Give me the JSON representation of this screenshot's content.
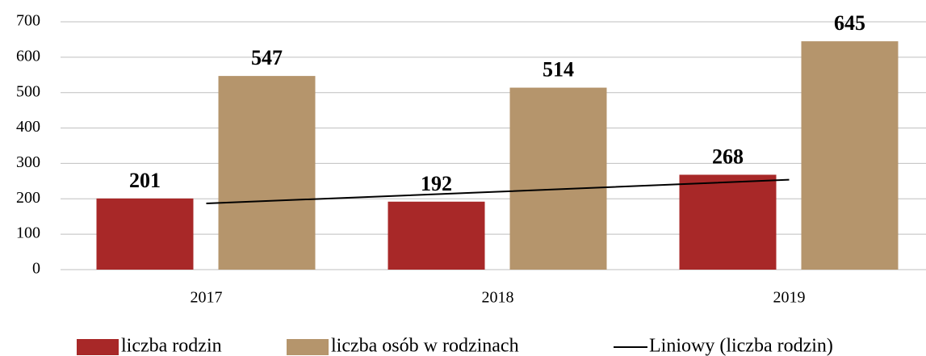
{
  "chart_data": {
    "type": "bar",
    "categories": [
      "2017",
      "2018",
      "2019"
    ],
    "series": [
      {
        "name": "liczba rodzin",
        "color": "#a82828",
        "values": [
          201,
          192,
          268
        ]
      },
      {
        "name": "liczba osób w rodzinach",
        "color": "#b5956c",
        "values": [
          547,
          514,
          645
        ]
      },
      {
        "name": "Liniowy (liczba rodzin)",
        "color": "#000000",
        "type": "line",
        "values": [
          187,
          220,
          254
        ]
      }
    ],
    "ylim": [
      0,
      700
    ],
    "yticks": [
      0,
      100,
      200,
      300,
      400,
      500,
      600,
      700
    ],
    "grid": true,
    "legend": "bottom"
  }
}
